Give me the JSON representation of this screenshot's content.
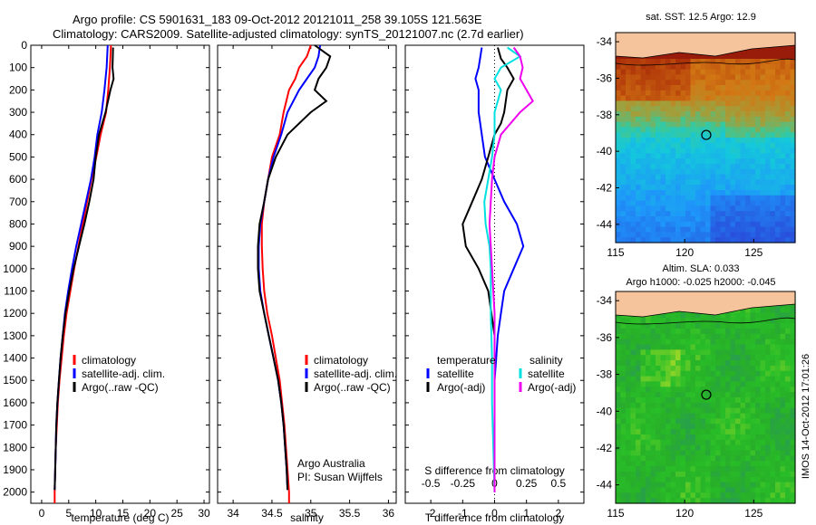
{
  "header": {
    "line1": "Argo profile: CS 5901631_183 09-Oct-2012 20121011_258 39.105S 121.563E",
    "line2": "Climatology: CARS2009. Satellite-adjusted climatology: synTS_20121007.nc (2.7d earlier)"
  },
  "colors": {
    "climatology": "#ff0000",
    "satellite": "#0000ff",
    "argo": "#000000",
    "sat_salinity": "#00e0e0",
    "argo_salinity": "#ee00ee",
    "land": "#f5c49c"
  },
  "chart_data": [
    {
      "type": "line",
      "id": "temperature",
      "xlabel": "temperature (deg C)",
      "xlim": [
        -2,
        31
      ],
      "xticks": [
        "0",
        "5",
        "10",
        "15",
        "20",
        "25",
        "30"
      ],
      "ylim": [
        2050,
        0
      ],
      "yticks": [
        "0",
        "100",
        "200",
        "300",
        "400",
        "500",
        "600",
        "700",
        "800",
        "900",
        "1000",
        "1100",
        "1200",
        "1300",
        "1400",
        "1500",
        "1600",
        "1700",
        "1800",
        "1900",
        "2000"
      ],
      "legend": [
        "climatology",
        "satellite-adj. clim.",
        "Argo(..raw -QC)"
      ],
      "series": [
        {
          "name": "climatology",
          "color": "#ff0000",
          "points": [
            [
              12.8,
              0
            ],
            [
              12.6,
              100
            ],
            [
              12.3,
              200
            ],
            [
              11.9,
              300
            ],
            [
              10.9,
              400
            ],
            [
              10.1,
              500
            ],
            [
              9.2,
              600
            ],
            [
              8.4,
              700
            ],
            [
              7.6,
              800
            ],
            [
              6.8,
              900
            ],
            [
              6.0,
              1000
            ],
            [
              5.3,
              1100
            ],
            [
              4.6,
              1200
            ],
            [
              4.1,
              1300
            ],
            [
              3.7,
              1400
            ],
            [
              3.3,
              1500
            ],
            [
              3.0,
              1600
            ],
            [
              2.8,
              1700
            ],
            [
              2.6,
              1800
            ],
            [
              2.5,
              1900
            ],
            [
              2.4,
              2000
            ],
            [
              2.4,
              2050
            ]
          ]
        },
        {
          "name": "satellite-adj. clim.",
          "color": "#0000ff",
          "points": [
            [
              12.2,
              0
            ],
            [
              12.0,
              100
            ],
            [
              11.6,
              200
            ],
            [
              11.1,
              300
            ],
            [
              10.3,
              400
            ],
            [
              9.8,
              500
            ],
            [
              9.1,
              600
            ],
            [
              8.2,
              700
            ],
            [
              7.3,
              800
            ],
            [
              6.4,
              900
            ],
            [
              5.6,
              1000
            ],
            [
              4.9,
              1100
            ],
            [
              4.3,
              1200
            ],
            [
              3.9,
              1300
            ],
            [
              3.5,
              1400
            ],
            [
              3.2,
              1500
            ],
            [
              2.9,
              1600
            ],
            [
              2.7,
              1700
            ],
            [
              2.6,
              1800
            ],
            [
              2.5,
              1900
            ],
            [
              2.4,
              1990
            ]
          ]
        },
        {
          "name": "Argo(..raw -QC)",
          "color": "#000000",
          "points": [
            [
              13.2,
              10
            ],
            [
              13.1,
              100
            ],
            [
              13.3,
              150
            ],
            [
              12.7,
              200
            ],
            [
              11.8,
              300
            ],
            [
              10.6,
              400
            ],
            [
              10.0,
              500
            ],
            [
              9.6,
              600
            ],
            [
              8.8,
              700
            ],
            [
              7.9,
              800
            ],
            [
              6.9,
              900
            ],
            [
              5.9,
              1000
            ],
            [
              5.1,
              1100
            ],
            [
              4.4,
              1200
            ],
            [
              3.9,
              1300
            ],
            [
              3.5,
              1400
            ],
            [
              3.2,
              1500
            ],
            [
              2.9,
              1600
            ],
            [
              2.7,
              1700
            ],
            [
              2.6,
              1800
            ],
            [
              2.5,
              1900
            ],
            [
              2.4,
              1990
            ]
          ]
        }
      ]
    },
    {
      "type": "line",
      "id": "salinity",
      "xlabel": "salinity",
      "xlim": [
        33.8,
        36.1
      ],
      "xticks": [
        "34",
        "34.5",
        "35",
        "35.5",
        "36"
      ],
      "ylim": [
        2050,
        0
      ],
      "legend": [
        "climatology",
        "satellite-adj. clim.",
        "Argo(..raw -QC)"
      ],
      "annotation": [
        "Argo Australia",
        "PI: Susan Wijffels"
      ],
      "series": [
        {
          "name": "climatology",
          "color": "#ff0000",
          "points": [
            [
              35.0,
              0
            ],
            [
              34.95,
              50
            ],
            [
              34.85,
              100
            ],
            [
              34.8,
              150
            ],
            [
              34.72,
              200
            ],
            [
              34.65,
              300
            ],
            [
              34.6,
              400
            ],
            [
              34.5,
              500
            ],
            [
              34.45,
              600
            ],
            [
              34.4,
              700
            ],
            [
              34.37,
              800
            ],
            [
              34.37,
              900
            ],
            [
              34.38,
              1000
            ],
            [
              34.4,
              1100
            ],
            [
              34.44,
              1200
            ],
            [
              34.5,
              1300
            ],
            [
              34.55,
              1400
            ],
            [
              34.6,
              1500
            ],
            [
              34.63,
              1600
            ],
            [
              34.66,
              1700
            ],
            [
              34.68,
              1800
            ],
            [
              34.7,
              1900
            ],
            [
              34.72,
              2000
            ],
            [
              34.72,
              2050
            ]
          ]
        },
        {
          "name": "satellite-adj. clim.",
          "color": "#0000ff",
          "points": [
            [
              35.12,
              0
            ],
            [
              35.1,
              50
            ],
            [
              35.05,
              100
            ],
            [
              34.95,
              150
            ],
            [
              34.85,
              200
            ],
            [
              34.7,
              300
            ],
            [
              34.62,
              400
            ],
            [
              34.52,
              500
            ],
            [
              34.45,
              600
            ],
            [
              34.4,
              700
            ],
            [
              34.35,
              800
            ],
            [
              34.33,
              900
            ],
            [
              34.33,
              1000
            ],
            [
              34.35,
              1100
            ],
            [
              34.4,
              1200
            ],
            [
              34.46,
              1300
            ],
            [
              34.52,
              1400
            ],
            [
              34.58,
              1500
            ],
            [
              34.62,
              1600
            ],
            [
              34.65,
              1700
            ],
            [
              34.67,
              1800
            ],
            [
              34.69,
              1900
            ],
            [
              34.7,
              1990
            ]
          ]
        },
        {
          "name": "Argo(..raw -QC)",
          "color": "#000000",
          "points": [
            [
              35.05,
              0
            ],
            [
              35.25,
              50
            ],
            [
              35.2,
              100
            ],
            [
              35.1,
              150
            ],
            [
              35.05,
              200
            ],
            [
              35.2,
              250
            ],
            [
              35.0,
              300
            ],
            [
              34.7,
              400
            ],
            [
              34.55,
              500
            ],
            [
              34.45,
              600
            ],
            [
              34.4,
              700
            ],
            [
              34.34,
              800
            ],
            [
              34.32,
              900
            ],
            [
              34.32,
              1000
            ],
            [
              34.34,
              1100
            ],
            [
              34.4,
              1200
            ],
            [
              34.46,
              1300
            ],
            [
              34.52,
              1400
            ],
            [
              34.58,
              1500
            ],
            [
              34.62,
              1600
            ],
            [
              34.65,
              1700
            ],
            [
              34.67,
              1800
            ],
            [
              34.69,
              1900
            ],
            [
              34.7,
              1990
            ]
          ]
        }
      ]
    },
    {
      "type": "line",
      "id": "difference",
      "xlabel": "T difference from climatology",
      "xlabel_top": "S difference from climatology",
      "xlim": [
        -2.8,
        2.8
      ],
      "xticks": [
        "-2",
        "-1",
        "0",
        "1",
        "2"
      ],
      "xticks_top": [
        "-0.5",
        "-0.25",
        "0",
        "0.25",
        "0.5"
      ],
      "ylim": [
        2050,
        0
      ],
      "legend_left_title": "temperature",
      "legend_right_title": "salinity",
      "legend_left": [
        "satellite",
        "Argo(-adj)"
      ],
      "legend_right": [
        "satellite",
        "Argo(-adj)"
      ],
      "series": [
        {
          "name": "T satellite",
          "color": "#0000ff",
          "points": [
            [
              -0.4,
              10
            ],
            [
              -0.5,
              100
            ],
            [
              -0.6,
              150
            ],
            [
              -0.5,
              200
            ],
            [
              -0.5,
              300
            ],
            [
              -0.4,
              400
            ],
            [
              -0.3,
              500
            ],
            [
              0,
              600
            ],
            [
              0.3,
              700
            ],
            [
              0.7,
              800
            ],
            [
              0.9,
              900
            ],
            [
              0.6,
              1000
            ],
            [
              0.3,
              1100
            ],
            [
              0.2,
              1200
            ],
            [
              0.1,
              1300
            ],
            [
              0.05,
              1400
            ],
            [
              0,
              1500
            ],
            [
              0,
              1600
            ],
            [
              0,
              1800
            ],
            [
              0,
              2000
            ]
          ]
        },
        {
          "name": "T Argo(-adj)",
          "color": "#000000",
          "points": [
            [
              0.1,
              10
            ],
            [
              0.2,
              60
            ],
            [
              0.4,
              100
            ],
            [
              0.6,
              150
            ],
            [
              0.4,
              200
            ],
            [
              0.3,
              300
            ],
            [
              0.2,
              350
            ],
            [
              0,
              400
            ],
            [
              -0.2,
              500
            ],
            [
              -0.4,
              600
            ],
            [
              -0.7,
              700
            ],
            [
              -1.0,
              800
            ],
            [
              -0.9,
              900
            ],
            [
              -0.5,
              1000
            ],
            [
              -0.2,
              1100
            ],
            [
              -0.1,
              1200
            ],
            [
              0,
              1300
            ],
            [
              0,
              1500
            ],
            [
              0,
              1700
            ],
            [
              0,
              2000
            ]
          ]
        },
        {
          "name": "S satellite",
          "color": "#00e0e0",
          "points": [
            [
              0.1,
              10
            ],
            [
              0.2,
              50
            ],
            [
              0.05,
              100
            ],
            [
              0.0,
              150
            ],
            [
              0.05,
              200
            ],
            [
              0.0,
              300
            ],
            [
              0.0,
              400
            ],
            [
              -0.02,
              500
            ],
            [
              -0.05,
              600
            ],
            [
              -0.08,
              700
            ],
            [
              -0.07,
              800
            ],
            [
              -0.04,
              900
            ],
            [
              -0.03,
              1000
            ],
            [
              -0.03,
              1200
            ],
            [
              -0.02,
              1400
            ],
            [
              -0.02,
              1600
            ],
            [
              -0.01,
              1800
            ],
            [
              0,
              2000
            ]
          ]
        },
        {
          "name": "S Argo(-adj)",
          "color": "#ee00ee",
          "points": [
            [
              0.15,
              10
            ],
            [
              0.2,
              50
            ],
            [
              0.22,
              100
            ],
            [
              0.2,
              150
            ],
            [
              0.25,
              200
            ],
            [
              0.3,
              250
            ],
            [
              0.2,
              300
            ],
            [
              0.05,
              400
            ],
            [
              0,
              500
            ],
            [
              -0.02,
              600
            ],
            [
              -0.03,
              700
            ],
            [
              -0.04,
              800
            ],
            [
              -0.03,
              900
            ],
            [
              -0.02,
              1000
            ],
            [
              0,
              1200
            ],
            [
              0,
              1600
            ],
            [
              0,
              2000
            ]
          ]
        }
      ]
    },
    {
      "type": "heatmap",
      "id": "sst_map",
      "title": "sat. SST: 12.5  Argo: 12.9",
      "xlim": [
        115,
        128
      ],
      "ylim": [
        -45,
        -33.5
      ],
      "xticks": [
        "115",
        "120",
        "125"
      ],
      "yticks": [
        "-34",
        "-36",
        "-38",
        "-40",
        "-42",
        "-44"
      ],
      "marker": {
        "lon": 121.563,
        "lat": -39.105
      }
    },
    {
      "type": "heatmap",
      "id": "sla_map",
      "title_line1": "Altim. SLA: 0.033",
      "title_line2": "Argo h1000: -0.025  h2000: -0.045",
      "xlim": [
        115,
        128
      ],
      "ylim": [
        -45,
        -33.5
      ],
      "xticks": [
        "115",
        "120",
        "125"
      ],
      "yticks": [
        "-34",
        "-36",
        "-38",
        "-40",
        "-42",
        "-44"
      ],
      "marker": {
        "lon": 121.563,
        "lat": -39.105
      }
    }
  ],
  "footer": {
    "stamp": "IMOS 14-Oct-2012 17:01:26"
  }
}
